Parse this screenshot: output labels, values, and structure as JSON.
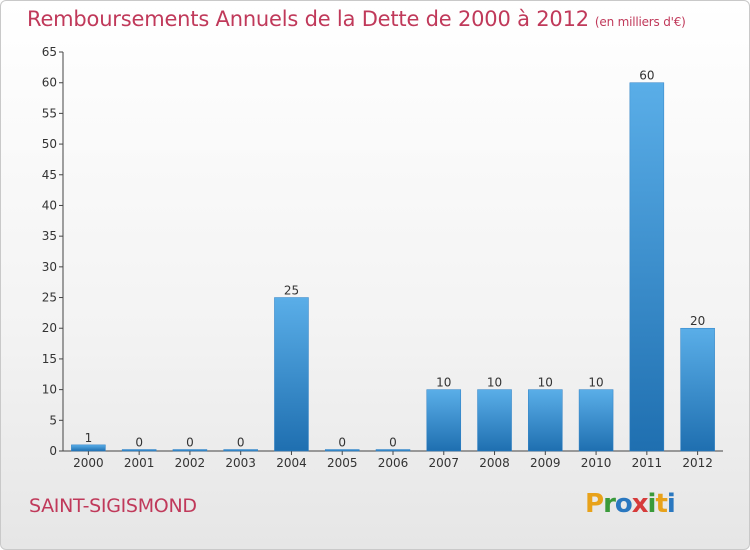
{
  "header": {
    "title": "Remboursements Annuels de la Dette de 2000 à 2012",
    "unit": "(en milliers d'€)"
  },
  "footer": {
    "commune": "SAINT-SIGISMOND",
    "logo_letters": [
      "P",
      "r",
      "o",
      "x",
      "i",
      "t",
      "i"
    ],
    "logo_colors": [
      "#e8a21a",
      "#3a9a3a",
      "#2a78c0",
      "#d63b3b",
      "#3a9a3a",
      "#e8a21a",
      "#2a78c0"
    ]
  },
  "chart_data": {
    "type": "bar",
    "categories": [
      "2000",
      "2001",
      "2002",
      "2003",
      "2004",
      "2005",
      "2006",
      "2007",
      "2008",
      "2009",
      "2010",
      "2011",
      "2012"
    ],
    "values": [
      1,
      0,
      0,
      0,
      25,
      0,
      0,
      10,
      10,
      10,
      10,
      60,
      20
    ],
    "data_labels": [
      "1",
      "0",
      "0",
      "0",
      "25",
      "0",
      "0",
      "10",
      "10",
      "10",
      "10",
      "60",
      "20"
    ],
    "ylim": [
      0,
      65
    ],
    "yticks": [
      0,
      5,
      10,
      15,
      20,
      25,
      30,
      35,
      40,
      45,
      50,
      55,
      60,
      65
    ],
    "grid": false,
    "bar_color": "#3a8fd6"
  }
}
